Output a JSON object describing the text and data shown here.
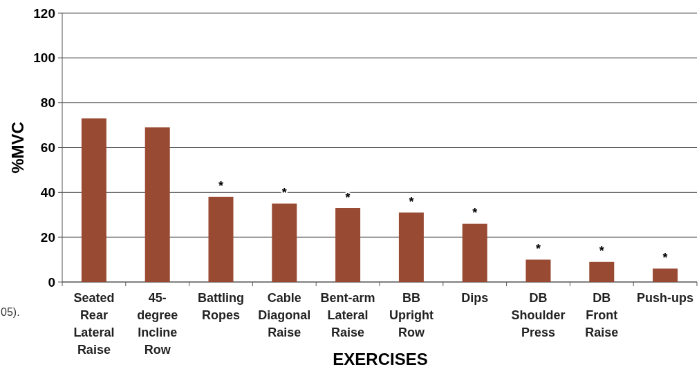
{
  "chart_data": {
    "type": "bar",
    "xlabel": "EXERCISES",
    "ylabel": "%MVC",
    "categories": [
      "Seated Rear Lateral Raise",
      "45-degree Incline Row",
      "Battling Ropes",
      "Cable Diagonal Raise",
      "Bent-arm Lateral Raise",
      "BB Upright Row",
      "Dips",
      "DB Shoulder Press",
      "DB Front Raise",
      "Push-ups"
    ],
    "values": [
      73,
      69,
      38,
      35,
      33,
      31,
      26,
      10,
      9,
      6
    ],
    "color": "#994a32",
    "ylim": [
      0,
      120
    ],
    "yticks": [
      0,
      20,
      40,
      60,
      80,
      100,
      120
    ],
    "grid": "y",
    "annotations": [
      {
        "text": "*",
        "x": "Battling Ropes",
        "y": 38
      },
      {
        "text": "*",
        "x": "Cable Diagonal Raise",
        "y": 35
      },
      {
        "text": "*",
        "x": "Bent-arm Lateral Raise",
        "y": 33
      },
      {
        "text": "*",
        "x": "BB Upright Row",
        "y": 31
      },
      {
        "text": "*",
        "x": "Dips",
        "y": 26
      },
      {
        "text": "*",
        "x": "DB Shoulder Press",
        "y": 10
      },
      {
        "text": "*",
        "x": "DB Front Raise",
        "y": 9
      },
      {
        "text": "*",
        "x": "Push-ups",
        "y": 6
      },
      "05)."
    ]
  }
}
